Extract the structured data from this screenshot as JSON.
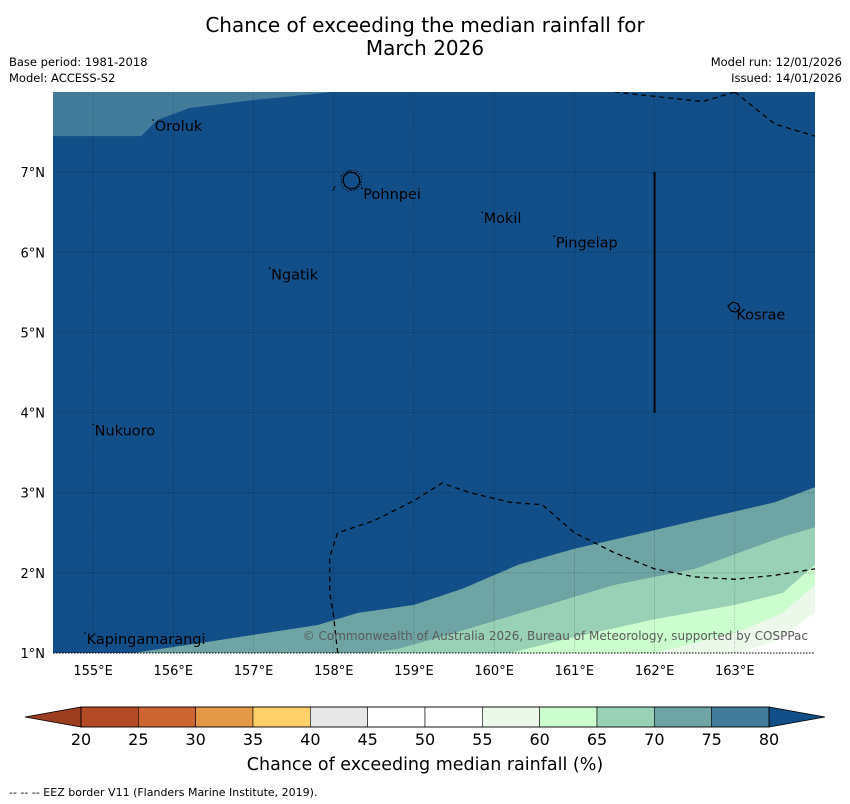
{
  "title_line1": "Chance of exceeding the median rainfall for",
  "title_line2": "March 2026",
  "base_period": "Base period: 1981-2018",
  "model": "Model: ACCESS-S2",
  "model_run": "Model run: 12/01/2026",
  "issued": "Issued: 14/01/2026",
  "copyright": "© Commonwealth of Australia 2026, Bureau of Meteorology, supported by COSPPac",
  "colorbar_label": "Chance of exceeding median rainfall (%)",
  "footnote": "--  --  -- EEZ border V11 (Flanders Marine Institute, 2019).",
  "map": {
    "lon_range": [
      154.5,
      164.0
    ],
    "lat_range": [
      1.0,
      8.0
    ],
    "lon_ticks": [
      {
        "value": 155,
        "label": "155°E"
      },
      {
        "value": 156,
        "label": "156°E"
      },
      {
        "value": 157,
        "label": "157°E"
      },
      {
        "value": 158,
        "label": "158°E"
      },
      {
        "value": 159,
        "label": "159°E"
      },
      {
        "value": 160,
        "label": "160°E"
      },
      {
        "value": 161,
        "label": "161°E"
      },
      {
        "value": 162,
        "label": "162°E"
      },
      {
        "value": 163,
        "label": "163°E"
      }
    ],
    "lat_ticks": [
      {
        "value": 1,
        "label": "1°N"
      },
      {
        "value": 2,
        "label": "2°N"
      },
      {
        "value": 3,
        "label": "3°N"
      },
      {
        "value": 4,
        "label": "4°N"
      },
      {
        "value": 5,
        "label": "5°N"
      },
      {
        "value": 6,
        "label": "6°N"
      },
      {
        "value": 7,
        "label": "7°N"
      }
    ],
    "places": [
      {
        "name": "Oroluk",
        "lon": 155.75,
        "lat": 7.65
      },
      {
        "name": "Pohnpei",
        "lon": 158.35,
        "lat": 6.8
      },
      {
        "name": "Mokil",
        "lon": 159.85,
        "lat": 6.5
      },
      {
        "name": "Pingelap",
        "lon": 160.75,
        "lat": 6.2
      },
      {
        "name": "Ngatik",
        "lon": 157.2,
        "lat": 5.8
      },
      {
        "name": "Kosrae",
        "lon": 163.0,
        "lat": 5.3
      },
      {
        "name": "Nukuoro",
        "lon": 155.0,
        "lat": 3.85
      },
      {
        "name": "Kapingamarangi",
        "lon": 154.9,
        "lat": 1.25
      }
    ],
    "bands": [
      {
        "level": "70-75",
        "boundary": [
          [
            154.5,
            0.95
          ],
          [
            164.0,
            0.95
          ],
          [
            164.0,
            3.07
          ],
          [
            163.5,
            2.88
          ],
          [
            162.5,
            2.65
          ],
          [
            161.0,
            2.3
          ],
          [
            160.3,
            2.1
          ],
          [
            159.6,
            1.8
          ],
          [
            159.0,
            1.6
          ],
          [
            158.3,
            1.5
          ],
          [
            157.8,
            1.35
          ],
          [
            156.5,
            1.15
          ],
          [
            155.5,
            1.0
          ],
          [
            154.5,
            1.0
          ]
        ]
      },
      {
        "level": "65-70",
        "boundary": [
          [
            154.5,
            0.95
          ],
          [
            164.0,
            0.95
          ],
          [
            164.0,
            2.57
          ],
          [
            163.6,
            2.45
          ],
          [
            162.5,
            2.05
          ],
          [
            161.5,
            1.85
          ],
          [
            160.5,
            1.55
          ],
          [
            159.5,
            1.25
          ],
          [
            158.8,
            1.05
          ],
          [
            158.0,
            0.95
          ]
        ]
      },
      {
        "level": "60-65",
        "boundary": [
          [
            154.5,
            0.95
          ],
          [
            164.0,
            0.95
          ],
          [
            164.0,
            2.1
          ],
          [
            163.6,
            1.75
          ],
          [
            163.0,
            1.6
          ],
          [
            162.0,
            1.42
          ],
          [
            161.0,
            1.2
          ],
          [
            160.2,
            1.0
          ],
          [
            159.5,
            0.95
          ]
        ]
      },
      {
        "level": "55-60",
        "boundary": [
          [
            154.5,
            0.95
          ],
          [
            164.0,
            0.95
          ],
          [
            164.0,
            1.85
          ],
          [
            163.6,
            1.5
          ],
          [
            163.0,
            1.25
          ],
          [
            162.0,
            1.0
          ],
          [
            161.5,
            0.95
          ]
        ]
      },
      {
        "level": "50-55",
        "boundary": [
          [
            154.5,
            0.95
          ],
          [
            164.0,
            0.95
          ],
          [
            164.0,
            1.5
          ],
          [
            163.5,
            1.15
          ],
          [
            163.0,
            0.98
          ],
          [
            162.9,
            0.95
          ]
        ]
      }
    ],
    "top_band": {
      "level": "75-80",
      "boundary": [
        [
          154.5,
          8.05
        ],
        [
          154.5,
          7.45
        ],
        [
          155.2,
          7.45
        ],
        [
          155.6,
          7.45
        ],
        [
          155.8,
          7.65
        ],
        [
          156.2,
          7.8
        ],
        [
          157.0,
          7.9
        ],
        [
          157.5,
          7.95
        ],
        [
          158.0,
          8.0
        ],
        [
          158.0,
          8.05
        ]
      ]
    },
    "eez_lines": [
      [
        [
          158.05,
          1.0
        ],
        [
          158.0,
          1.45
        ],
        [
          157.95,
          1.75
        ],
        [
          157.95,
          2.2
        ],
        [
          158.05,
          2.5
        ],
        [
          158.5,
          2.65
        ],
        [
          159.0,
          2.9
        ],
        [
          159.35,
          3.12
        ],
        [
          159.7,
          3.0
        ],
        [
          160.2,
          2.88
        ],
        [
          160.6,
          2.85
        ],
        [
          161.0,
          2.5
        ],
        [
          161.5,
          2.25
        ],
        [
          162.0,
          2.05
        ],
        [
          162.5,
          1.95
        ],
        [
          163.0,
          1.92
        ],
        [
          163.5,
          1.97
        ],
        [
          164.0,
          2.05
        ]
      ],
      [
        [
          161.5,
          8.0
        ],
        [
          162.6,
          7.88
        ],
        [
          163.0,
          8.0
        ]
      ],
      [
        [
          163.0,
          8.0
        ],
        [
          163.5,
          7.6
        ],
        [
          164.0,
          7.45
        ]
      ]
    ],
    "meridian_segment": {
      "lon": 162.0,
      "lat_from": 4.0,
      "lat_to": 7.0
    }
  },
  "colorbar": {
    "min": 20,
    "max": 80,
    "tick_labels": [
      "20",
      "25",
      "30",
      "35",
      "40",
      "45",
      "50",
      "55",
      "60",
      "65",
      "70",
      "75",
      "80"
    ],
    "under_color": "#9c3d20",
    "over_color": "#124e87",
    "bins": [
      {
        "from": 20,
        "to": 25,
        "color": "#b24a26"
      },
      {
        "from": 25,
        "to": 30,
        "color": "#cc6532"
      },
      {
        "from": 30,
        "to": 35,
        "color": "#e39848"
      },
      {
        "from": 35,
        "to": 40,
        "color": "#fdd06a"
      },
      {
        "from": 40,
        "to": 45,
        "color": "#e7e7e7"
      },
      {
        "from": 45,
        "to": 50,
        "color": "#ffffff"
      },
      {
        "from": 50,
        "to": 55,
        "color": "#ffffff"
      },
      {
        "from": 55,
        "to": 60,
        "color": "#ebf8ea"
      },
      {
        "from": 60,
        "to": 65,
        "color": "#ccfdce"
      },
      {
        "from": 65,
        "to": 70,
        "color": "#98d1b6"
      },
      {
        "from": 70,
        "to": 75,
        "color": "#6ea4a3"
      },
      {
        "from": 75,
        "to": 80,
        "color": "#437c9b"
      }
    ]
  }
}
